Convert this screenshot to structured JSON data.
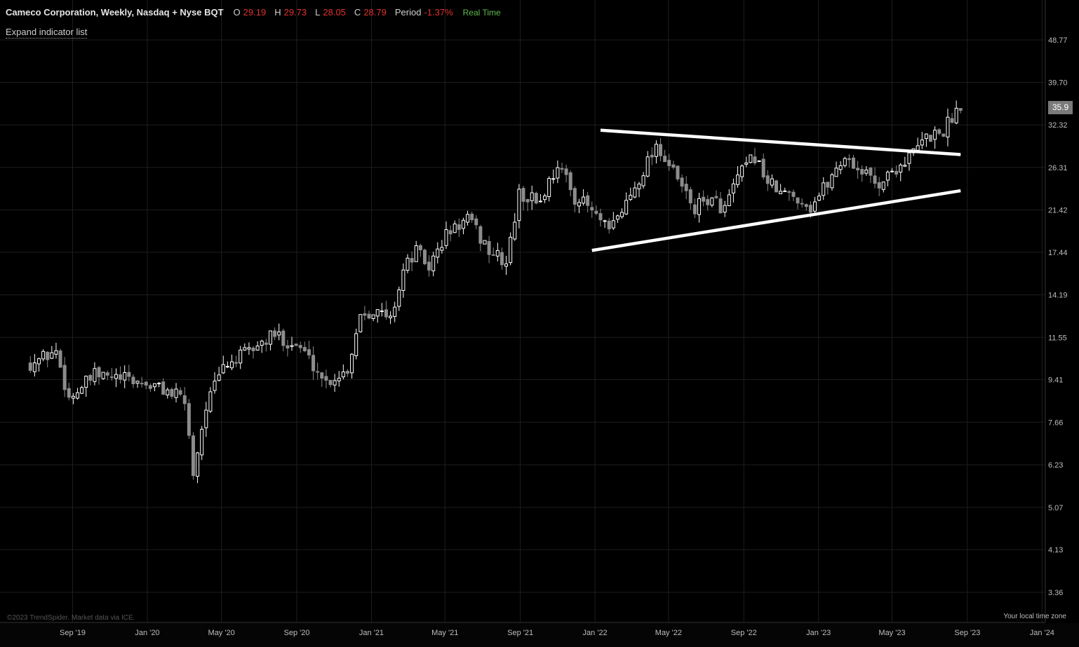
{
  "header": {
    "title": "Cameco Corporation, Weekly, Nasdaq + Nyse BQT",
    "open_label": "O",
    "open_value": "29.19",
    "high_label": "H",
    "high_value": "29.73",
    "low_label": "L",
    "low_value": "28.05",
    "close_label": "C",
    "close_value": "28.79",
    "period_label": "Period",
    "period_value": "-1.37%",
    "realtime": "Real Time"
  },
  "expand_indicator": "Expand indicator list",
  "current_price": "35.9",
  "copyright": "©2023 TrendSpider. Market data via ICE.",
  "timezone_label": "Your local time zone",
  "colors": {
    "background": "#000000",
    "candle": "#ffffff",
    "down_candle": "#8c8c8c",
    "trendline": "#ffffff",
    "negative": "#e0322f",
    "realtime": "#5fb84f"
  },
  "chart_data": {
    "type": "candlestick",
    "y_scale": "log",
    "y_ticks": [
      "48.77",
      "39.70",
      "32.32",
      "26.31",
      "21.42",
      "17.44",
      "14.19",
      "11.55",
      "9.41",
      "7.66",
      "6.23",
      "5.07",
      "4.13",
      "3.36"
    ],
    "x_ticks": [
      "Sep '19",
      "Jan '20",
      "May '20",
      "Sep '20",
      "Jan '21",
      "May '21",
      "Sep '21",
      "Jan '22",
      "May '22",
      "Sep '22",
      "Jan '23",
      "May '23",
      "Sep '23",
      "Jan '24"
    ],
    "ylim": [
      3.36,
      48.77
    ],
    "grid": true,
    "anchors": [
      [
        "2019-06-24",
        10.2
      ],
      [
        "2019-08-05",
        10.8
      ],
      [
        "2019-08-26",
        8.6
      ],
      [
        "2019-10-07",
        9.6
      ],
      [
        "2019-12-02",
        9.4
      ],
      [
        "2020-01-27",
        9.0
      ],
      [
        "2020-03-02",
        8.5
      ],
      [
        "2020-03-16",
        6.0
      ],
      [
        "2020-04-06",
        8.3
      ],
      [
        "2020-05-04",
        10.0
      ],
      [
        "2020-06-15",
        10.8
      ],
      [
        "2020-07-27",
        11.7
      ],
      [
        "2020-09-07",
        11.0
      ],
      [
        "2020-10-19",
        9.3
      ],
      [
        "2020-11-23",
        9.9
      ],
      [
        "2020-12-14",
        13.0
      ],
      [
        "2021-01-04",
        13.2
      ],
      [
        "2021-02-01",
        12.6
      ],
      [
        "2021-02-22",
        16.0
      ],
      [
        "2021-03-15",
        17.6
      ],
      [
        "2021-04-05",
        16.2
      ],
      [
        "2021-05-03",
        19.0
      ],
      [
        "2021-06-07",
        20.5
      ],
      [
        "2021-07-12",
        17.6
      ],
      [
        "2021-08-09",
        16.5
      ],
      [
        "2021-08-30",
        23.0
      ],
      [
        "2021-10-04",
        22.4
      ],
      [
        "2021-11-01",
        26.8
      ],
      [
        "2021-11-29",
        22.8
      ],
      [
        "2021-12-20",
        21.8
      ],
      [
        "2022-01-24",
        19.2
      ],
      [
        "2022-02-28",
        23.0
      ],
      [
        "2022-04-11",
        29.5
      ],
      [
        "2022-05-02",
        26.5
      ],
      [
        "2022-06-13",
        21.5
      ],
      [
        "2022-07-04",
        22.6
      ],
      [
        "2022-08-01",
        21.6
      ],
      [
        "2022-08-22",
        25.0
      ],
      [
        "2022-09-19",
        27.8
      ],
      [
        "2022-10-10",
        24.5
      ],
      [
        "2022-10-31",
        23.2
      ],
      [
        "2022-11-28",
        22.8
      ],
      [
        "2022-12-19",
        21.7
      ],
      [
        "2023-01-16",
        24.5
      ],
      [
        "2023-02-13",
        27.8
      ],
      [
        "2023-03-06",
        26.2
      ],
      [
        "2023-04-10",
        24.3
      ],
      [
        "2023-05-01",
        25.8
      ],
      [
        "2023-05-29",
        27.6
      ],
      [
        "2023-06-26",
        30.4
      ],
      [
        "2023-07-24",
        31.5
      ],
      [
        "2023-08-21",
        35.9
      ]
    ],
    "trendlines": [
      {
        "name": "upper",
        "from": [
          "2022-01-10",
          31.5
        ],
        "to": [
          "2023-08-21",
          28.0
        ]
      },
      {
        "name": "lower",
        "from": [
          "2021-12-27",
          17.6
        ],
        "to": [
          "2023-08-21",
          23.5
        ]
      }
    ]
  }
}
